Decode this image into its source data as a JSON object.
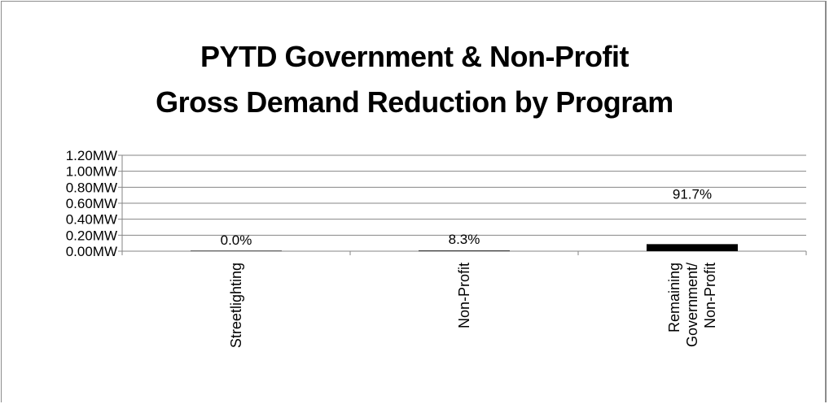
{
  "chart_data": {
    "type": "bar",
    "title_lines": [
      "PYTD Government & Non-Profit",
      "Gross Demand Reduction by Program"
    ],
    "categories": [
      [
        "Streetlighting"
      ],
      [
        "Non-Profit"
      ],
      [
        "Remaining",
        "Government/",
        "Non-Profit"
      ]
    ],
    "values": [
      0.0,
      0.008,
      0.088
    ],
    "data_labels": [
      "0.0%",
      "8.3%",
      "91.7%"
    ],
    "y_ticks": [
      "0.00MW",
      "0.20MW",
      "0.40MW",
      "0.60MW",
      "0.80MW",
      "1.00MW",
      "1.20MW"
    ],
    "ylim": [
      0,
      1.2
    ],
    "grid": true,
    "legend": "none",
    "bar_color": "#000000"
  }
}
